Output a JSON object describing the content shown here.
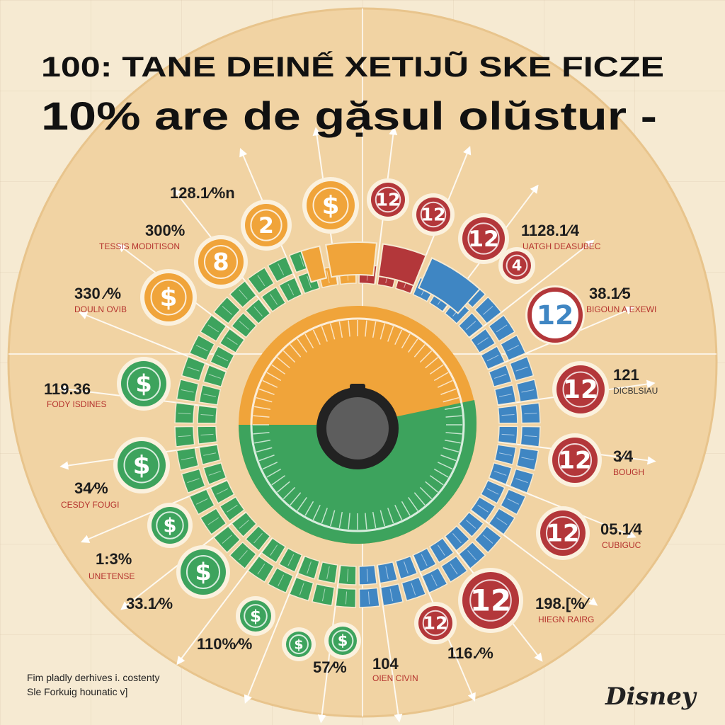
{
  "title": {
    "line1": "100: TANE DEINẾ XETIJŨ SKE FICZE",
    "line2": "10% are de gặsul olŭstur   -"
  },
  "colors": {
    "background": "#f6ead2",
    "disc": "#f1d3a3",
    "green": "#3da35d",
    "orange": "#f0a43a",
    "red": "#b3373a",
    "blue": "#3f86c3",
    "hub": "#555555"
  },
  "left_labels": [
    {
      "value": "128.1⁄%n",
      "subtitle": ""
    },
    {
      "value": "300%",
      "subtitle": "TESSIS MODITISON"
    },
    {
      "value": "330 ⁄%",
      "subtitle": "DOULN OVIB"
    },
    {
      "value": "119.36",
      "subtitle": "FODY ISDINES"
    },
    {
      "value": "34⁄%",
      "subtitle": "CESDY FOUGI"
    },
    {
      "value": "1:3%",
      "subtitle": "UNETENSE"
    },
    {
      "value": "33.1⁄%",
      "subtitle": ""
    },
    {
      "value": "110%⁄%",
      "subtitle": ""
    },
    {
      "value": "57⁄%",
      "subtitle": ""
    }
  ],
  "right_labels": [
    {
      "value": "1128.1⁄4",
      "subtitle": "UATGH DEASUBEC"
    },
    {
      "value": "38.1⁄5",
      "subtitle": "BIGOUN A EXEWI"
    },
    {
      "value": "121",
      "subtitle": "DICBLSIAU"
    },
    {
      "value": "3⁄4",
      "subtitle": "BOUGH"
    },
    {
      "value": "05.1⁄4",
      "subtitle": "CUBIGUC"
    },
    {
      "value": "198.[%⁄",
      "subtitle": "HIEGN RAIRG"
    },
    {
      "value": "116.⁄%",
      "subtitle": ""
    },
    {
      "value": "104",
      "subtitle": "OIEN CIVIN"
    }
  ],
  "badges": {
    "orange": [
      "$",
      "2",
      "8",
      "$"
    ],
    "green": [
      "$",
      "$",
      "$",
      "$",
      "$",
      "$",
      "$"
    ],
    "red": [
      "12",
      "12",
      "12",
      "4",
      "12",
      "12",
      "12",
      "12",
      "12",
      "12"
    ]
  },
  "footer": {
    "line1": "Fim pladly derhives i. costenty",
    "line2": "Sle Forkuig hounatic v]"
  },
  "logo": "Disney",
  "icons": [
    "dollar-coin-icon",
    "number-badge-icon",
    "hub-knob-icon",
    "arrow-icon",
    "logo-icon"
  ]
}
